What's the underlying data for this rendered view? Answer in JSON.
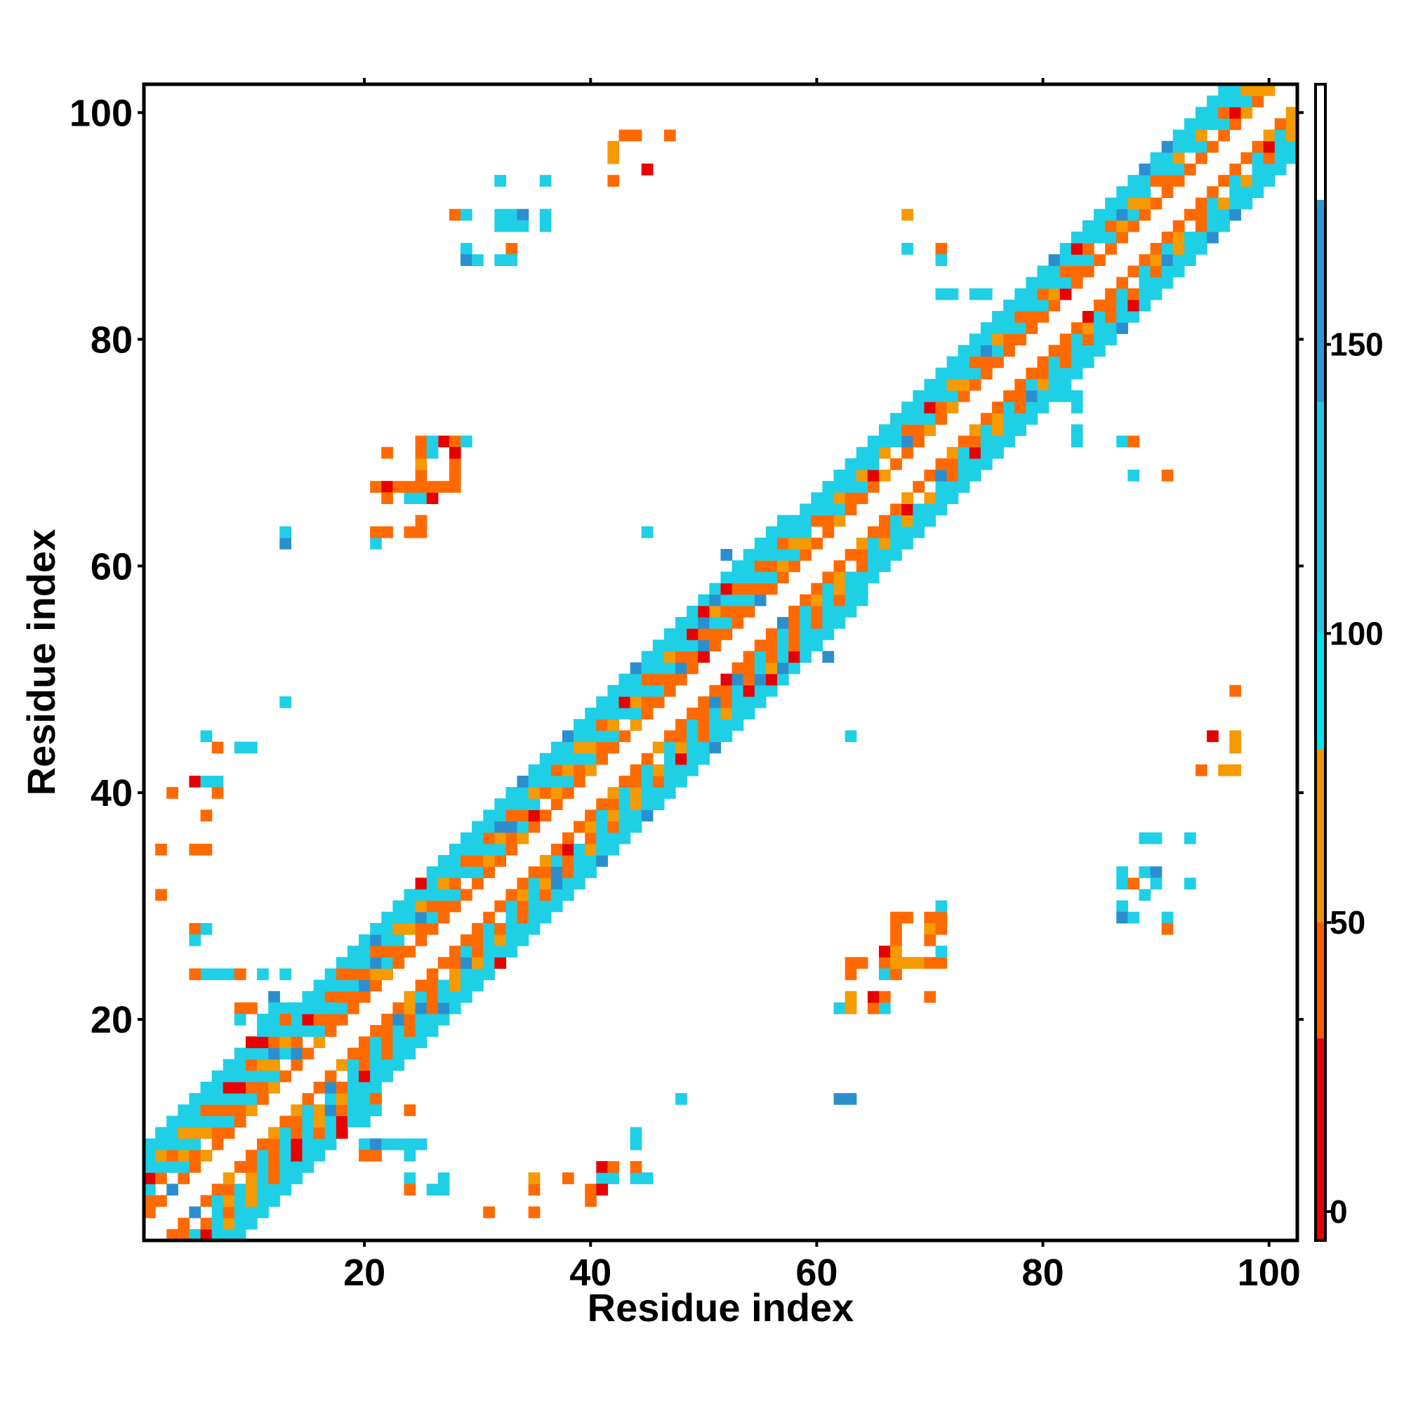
{
  "chart_data": {
    "type": "heatmap",
    "title": "",
    "xlabel": "Residue index",
    "ylabel": "Residue index",
    "xlim": [
      1,
      102
    ],
    "ylim": [
      1,
      102
    ],
    "x_ticks": [
      "20",
      "40",
      "60",
      "80",
      "100"
    ],
    "y_ticks": [
      "20",
      "40",
      "60",
      "80",
      "100"
    ],
    "colorbar": {
      "range": [
        -5,
        195
      ],
      "ticks": [
        "0",
        "50",
        "100",
        "150"
      ],
      "bands": [
        {
          "from": -5,
          "to": 30,
          "color": "#e60000"
        },
        {
          "from": 30,
          "to": 50,
          "color": "#ff5a00"
        },
        {
          "from": 50,
          "to": 80,
          "color": "#f39200"
        },
        {
          "from": 80,
          "to": 100,
          "color": "#00e5ee"
        },
        {
          "from": 100,
          "to": 140,
          "color": "#1ec8e6"
        },
        {
          "from": 140,
          "to": 175,
          "color": "#2a9ad4"
        },
        {
          "from": 175,
          "to": 195,
          "color": "#ffffff"
        }
      ]
    },
    "band_pattern": {
      "cyan": "#1fcfe6",
      "orange": "#ff6a00",
      "amber": "#f59a00",
      "red": "#e60000",
      "blue": "#2b8fcf"
    },
    "diagonal_segments": [
      [
        1,
        14,
        8
      ],
      [
        14,
        40,
        7
      ],
      [
        40,
        58,
        7
      ],
      [
        58,
        66,
        6
      ],
      [
        66,
        79,
        6
      ],
      [
        79,
        101,
        6
      ]
    ],
    "off_diagonal_cells": [
      [
        11,
        24,
        "c"
      ],
      [
        13,
        24,
        "c"
      ],
      [
        12,
        22,
        "b"
      ],
      [
        9,
        21,
        "o"
      ],
      [
        10,
        21,
        "o"
      ],
      [
        12,
        21,
        "c"
      ],
      [
        11,
        20,
        "c"
      ],
      [
        9,
        20,
        "c"
      ],
      [
        13,
        20,
        "o"
      ],
      [
        17,
        21,
        "c"
      ],
      [
        18,
        24,
        "o"
      ],
      [
        6,
        24,
        "c"
      ],
      [
        5,
        24,
        "o"
      ],
      [
        8,
        24,
        "c"
      ],
      [
        9,
        24,
        "o"
      ],
      [
        7,
        24,
        "c"
      ],
      [
        5,
        28,
        "o"
      ],
      [
        6,
        28,
        "c"
      ],
      [
        5,
        27,
        "c"
      ],
      [
        2,
        35,
        "o"
      ],
      [
        5,
        35,
        "o"
      ],
      [
        6,
        35,
        "o"
      ],
      [
        2,
        31,
        "o"
      ],
      [
        3,
        40,
        "o"
      ],
      [
        5,
        41,
        "r"
      ],
      [
        6,
        41,
        "c"
      ],
      [
        7,
        41,
        "c"
      ],
      [
        7,
        40,
        "o"
      ],
      [
        6,
        38,
        "o"
      ],
      [
        6,
        45,
        "c"
      ],
      [
        7,
        44,
        "o"
      ],
      [
        9,
        44,
        "c"
      ],
      [
        10,
        44,
        "c"
      ],
      [
        13,
        48,
        "c"
      ],
      [
        13,
        62,
        "b"
      ],
      [
        13,
        63,
        "c"
      ],
      [
        21,
        62,
        "c"
      ],
      [
        21,
        63,
        "o"
      ],
      [
        22,
        63,
        "o"
      ],
      [
        24,
        63,
        "o"
      ],
      [
        25,
        63,
        "o"
      ],
      [
        25,
        64,
        "o"
      ],
      [
        21,
        67,
        "o"
      ],
      [
        22,
        67,
        "r"
      ],
      [
        22,
        66,
        "o"
      ],
      [
        24,
        66,
        "c"
      ],
      [
        25,
        66,
        "c"
      ],
      [
        26,
        66,
        "r"
      ],
      [
        23,
        67,
        "o"
      ],
      [
        24,
        67,
        "o"
      ],
      [
        25,
        67,
        "o"
      ],
      [
        26,
        67,
        "o"
      ],
      [
        27,
        67,
        "o"
      ],
      [
        28,
        67,
        "o"
      ],
      [
        25,
        68,
        "o"
      ],
      [
        25,
        69,
        "a"
      ],
      [
        25,
        70,
        "o"
      ],
      [
        26,
        70,
        "c"
      ],
      [
        22,
        70,
        "o"
      ],
      [
        28,
        69,
        "o"
      ],
      [
        28,
        68,
        "o"
      ],
      [
        27,
        71,
        "r"
      ],
      [
        28,
        71,
        "o"
      ],
      [
        29,
        71,
        "c"
      ],
      [
        25,
        71,
        "o"
      ],
      [
        26,
        71,
        "c"
      ],
      [
        28,
        70,
        "r"
      ],
      [
        42,
        96,
        "a"
      ],
      [
        42,
        97,
        "a"
      ],
      [
        43,
        98,
        "o"
      ],
      [
        44,
        98,
        "o"
      ],
      [
        47,
        98,
        "o"
      ],
      [
        45,
        95,
        "r"
      ],
      [
        42,
        94,
        "o"
      ],
      [
        32,
        94,
        "c"
      ],
      [
        36,
        94,
        "c"
      ],
      [
        28,
        91,
        "o"
      ],
      [
        29,
        91,
        "c"
      ],
      [
        32,
        91,
        "c"
      ],
      [
        33,
        91,
        "c"
      ],
      [
        34,
        91,
        "b"
      ],
      [
        36,
        91,
        "c"
      ],
      [
        32,
        90,
        "c"
      ],
      [
        33,
        90,
        "c"
      ],
      [
        34,
        90,
        "c"
      ],
      [
        36,
        90,
        "c"
      ],
      [
        29,
        88,
        "c"
      ],
      [
        33,
        88,
        "o"
      ],
      [
        29,
        87,
        "b"
      ],
      [
        30,
        87,
        "c"
      ],
      [
        32,
        87,
        "c"
      ],
      [
        33,
        87,
        "c"
      ],
      [
        45,
        63,
        "c"
      ],
      [
        52,
        61,
        "b"
      ],
      [
        61,
        52,
        "b"
      ],
      [
        63,
        45,
        "c"
      ],
      [
        68,
        91,
        "a"
      ],
      [
        68,
        88,
        "c"
      ],
      [
        71,
        88,
        "o"
      ],
      [
        71,
        87,
        "c"
      ],
      [
        71,
        84,
        "c"
      ],
      [
        72,
        84,
        "c"
      ],
      [
        74,
        84,
        "c"
      ],
      [
        75,
        84,
        "c"
      ],
      [
        80,
        75,
        "c"
      ],
      [
        82,
        75,
        "c"
      ],
      [
        83,
        75,
        "c"
      ],
      [
        83,
        74,
        "c"
      ],
      [
        83,
        72,
        "c"
      ],
      [
        83,
        71,
        "c"
      ],
      [
        87,
        71,
        "c"
      ],
      [
        88,
        71,
        "o"
      ],
      [
        88,
        68,
        "c"
      ],
      [
        91,
        68,
        "o"
      ],
      [
        62,
        21,
        "c"
      ],
      [
        63,
        21,
        "a"
      ],
      [
        63,
        22,
        "a"
      ],
      [
        63,
        25,
        "o"
      ],
      [
        64,
        25,
        "o"
      ],
      [
        63,
        24,
        "o"
      ],
      [
        65,
        21,
        "o"
      ],
      [
        66,
        21,
        "c"
      ],
      [
        65,
        22,
        "r"
      ],
      [
        66,
        22,
        "o"
      ],
      [
        70,
        22,
        "o"
      ],
      [
        66,
        25,
        "o"
      ],
      [
        66,
        24,
        "c"
      ],
      [
        67,
        24,
        "o"
      ],
      [
        67,
        25,
        "a"
      ],
      [
        68,
        25,
        "a"
      ],
      [
        69,
        25,
        "a"
      ],
      [
        70,
        25,
        "o"
      ],
      [
        71,
        25,
        "o"
      ],
      [
        66,
        26,
        "r"
      ],
      [
        67,
        26,
        "a"
      ],
      [
        67,
        27,
        "o"
      ],
      [
        67,
        28,
        "o"
      ],
      [
        67,
        29,
        "o"
      ],
      [
        68,
        29,
        "o"
      ],
      [
        70,
        29,
        "o"
      ],
      [
        71,
        29,
        "o"
      ],
      [
        70,
        28,
        "a"
      ],
      [
        71,
        28,
        "o"
      ],
      [
        70,
        27,
        "o"
      ],
      [
        71,
        26,
        "c"
      ],
      [
        71,
        30,
        "c"
      ],
      [
        62,
        13,
        "b"
      ],
      [
        63,
        13,
        "b"
      ],
      [
        48,
        13,
        "c"
      ],
      [
        87,
        33,
        "c"
      ],
      [
        87,
        32,
        "c"
      ],
      [
        88,
        32,
        "o"
      ],
      [
        89,
        33,
        "c"
      ],
      [
        90,
        33,
        "b"
      ],
      [
        90,
        32,
        "c"
      ],
      [
        89,
        31,
        "c"
      ],
      [
        89,
        36,
        "c"
      ],
      [
        90,
        36,
        "c"
      ],
      [
        93,
        36,
        "c"
      ],
      [
        93,
        32,
        "c"
      ],
      [
        87,
        30,
        "c"
      ],
      [
        87,
        29,
        "b"
      ],
      [
        88,
        29,
        "c"
      ],
      [
        91,
        29,
        "c"
      ],
      [
        91,
        28,
        "o"
      ],
      [
        94,
        42,
        "o"
      ],
      [
        96,
        42,
        "a"
      ],
      [
        97,
        42,
        "a"
      ],
      [
        97,
        44,
        "a"
      ],
      [
        97,
        45,
        "a"
      ],
      [
        95,
        45,
        "r"
      ],
      [
        97,
        49,
        "o"
      ],
      [
        20,
        13,
        "c"
      ],
      [
        21,
        13,
        "o"
      ],
      [
        21,
        12,
        "c"
      ],
      [
        24,
        12,
        "o"
      ],
      [
        20,
        11,
        "c"
      ],
      [
        20,
        9,
        "c"
      ],
      [
        20,
        8,
        "o"
      ],
      [
        21,
        8,
        "o"
      ],
      [
        21,
        9,
        "b"
      ],
      [
        22,
        9,
        "c"
      ],
      [
        23,
        9,
        "c"
      ],
      [
        24,
        9,
        "c"
      ],
      [
        25,
        9,
        "c"
      ],
      [
        24,
        8,
        "c"
      ],
      [
        24,
        6,
        "c"
      ],
      [
        24,
        5,
        "o"
      ],
      [
        27,
        5,
        "c"
      ],
      [
        27,
        6,
        "c"
      ],
      [
        26,
        5,
        "c"
      ],
      [
        31,
        3,
        "o"
      ],
      [
        35,
        3,
        "o"
      ],
      [
        35,
        5,
        "o"
      ],
      [
        35,
        6,
        "a"
      ],
      [
        38,
        6,
        "o"
      ],
      [
        40,
        5,
        "o"
      ],
      [
        40,
        4,
        "o"
      ],
      [
        41,
        6,
        "c"
      ],
      [
        42,
        6,
        "c"
      ],
      [
        41,
        7,
        "r"
      ],
      [
        42,
        7,
        "o"
      ],
      [
        41,
        5,
        "r"
      ],
      [
        44,
        6,
        "c"
      ],
      [
        45,
        6,
        "c"
      ],
      [
        44,
        7,
        "o"
      ],
      [
        44,
        9,
        "c"
      ],
      [
        44,
        10,
        "c"
      ]
    ]
  }
}
